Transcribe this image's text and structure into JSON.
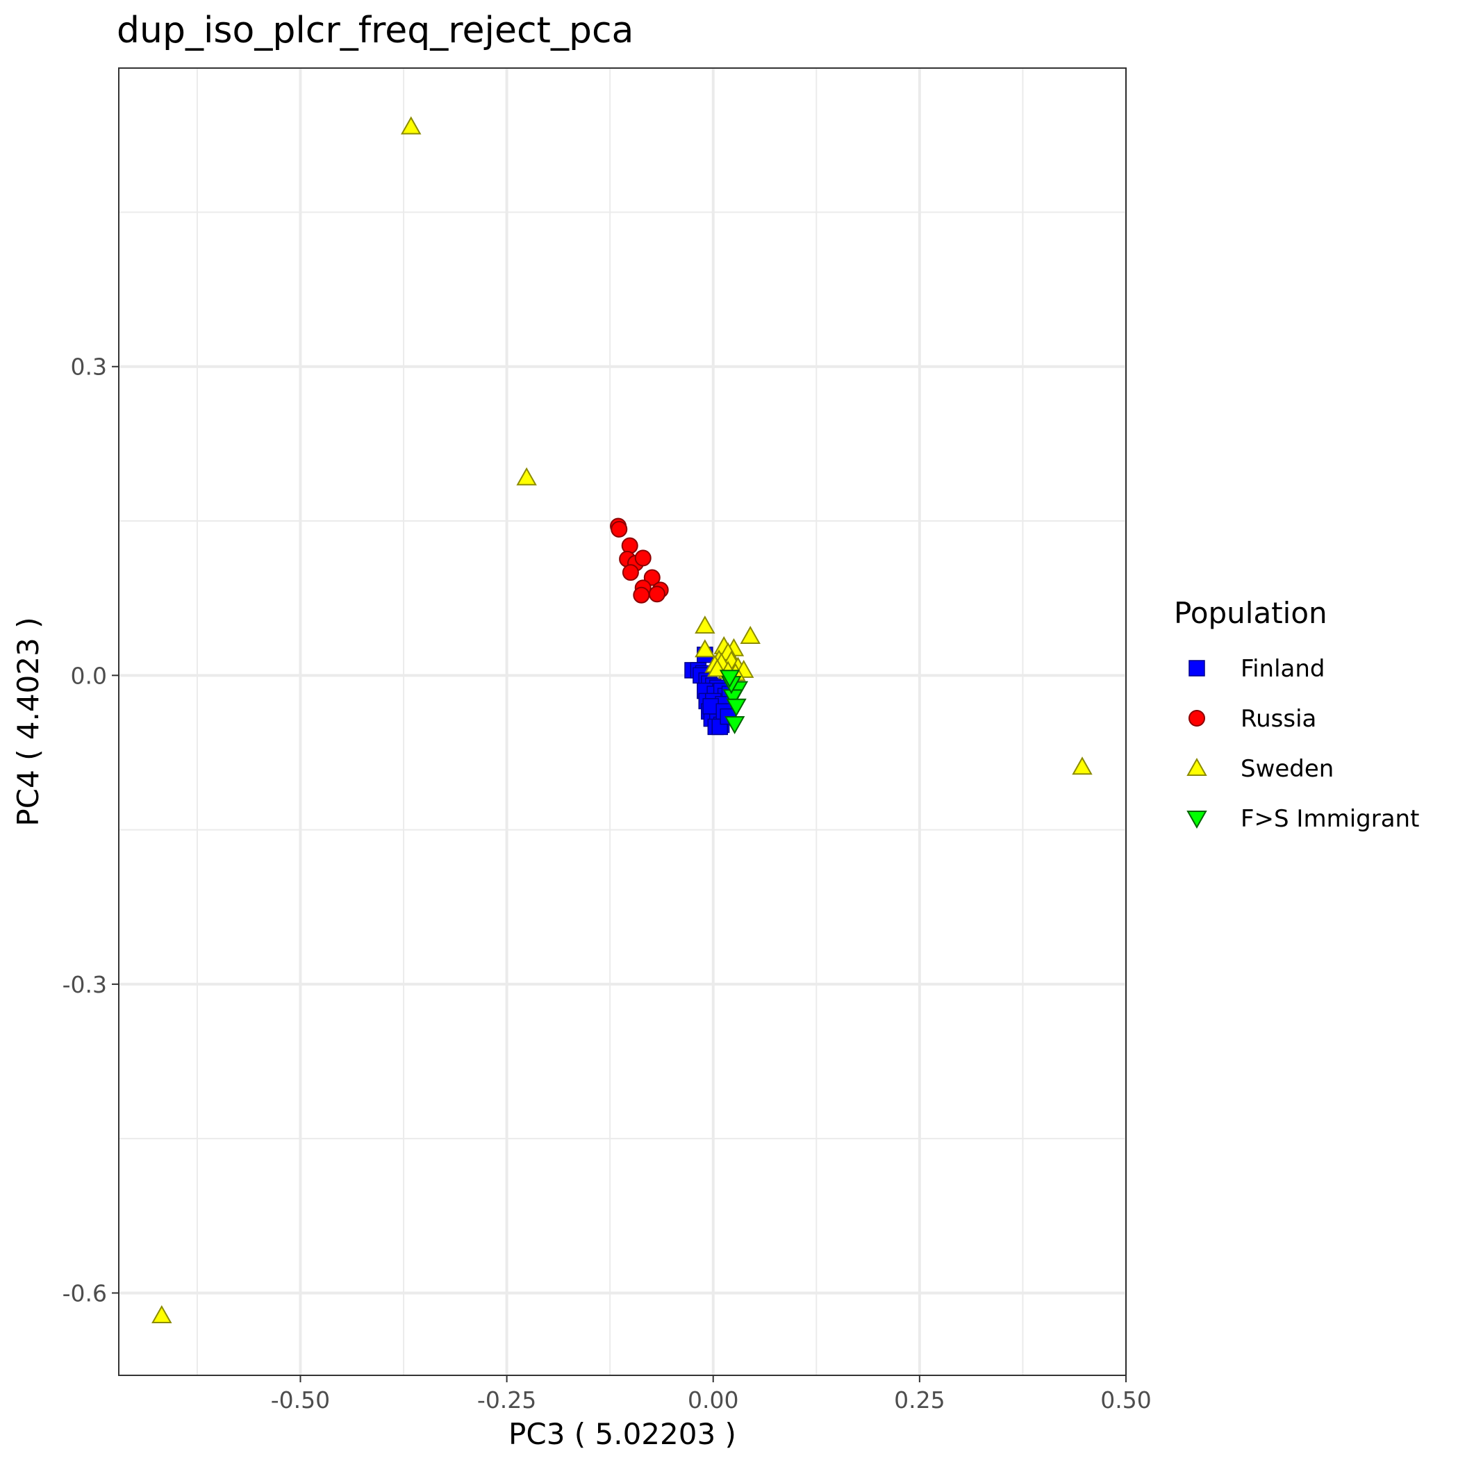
{
  "chart_data": {
    "type": "scatter",
    "title": "dup_iso_plcr_freq_reject_pca",
    "xlabel": "PC3 ( 5.02203 )",
    "ylabel": "PC4 ( 4.4023 )",
    "xlim": [
      -0.72,
      0.5
    ],
    "ylim": [
      -0.68,
      0.59
    ],
    "x_ticks": [
      -0.5,
      -0.25,
      0.0,
      0.25,
      0.5
    ],
    "x_tick_labels": [
      "-0.50",
      "-0.25",
      "0.00",
      "0.25",
      "0.50"
    ],
    "y_ticks": [
      -0.6,
      -0.3,
      0.0,
      0.3
    ],
    "y_tick_labels": [
      "-0.6",
      "-0.3",
      "0.0",
      "0.3"
    ],
    "grid": true,
    "legend": {
      "title": "Population",
      "position": "right"
    },
    "series": [
      {
        "name": "Finland",
        "marker": "square",
        "color": "#0000ff",
        "points": [
          [
            -0.01,
            0.02
          ],
          [
            -0.025,
            0.005
          ],
          [
            -0.018,
            0.005
          ],
          [
            -0.012,
            0.002
          ],
          [
            -0.015,
            0.0
          ],
          [
            -0.008,
            -0.005
          ],
          [
            -0.005,
            -0.008
          ],
          [
            0.0,
            -0.01
          ],
          [
            0.005,
            -0.012
          ],
          [
            -0.01,
            -0.015
          ],
          [
            0.002,
            -0.018
          ],
          [
            0.01,
            -0.015
          ],
          [
            0.015,
            -0.02
          ],
          [
            0.02,
            -0.018
          ],
          [
            -0.008,
            -0.025
          ],
          [
            0.0,
            -0.025
          ],
          [
            0.008,
            -0.03
          ],
          [
            0.012,
            -0.028
          ],
          [
            -0.005,
            -0.035
          ],
          [
            0.002,
            -0.038
          ],
          [
            0.01,
            -0.04
          ],
          [
            0.015,
            -0.038
          ],
          [
            -0.002,
            -0.042
          ],
          [
            0.005,
            -0.045
          ],
          [
            0.01,
            -0.048
          ],
          [
            0.003,
            -0.05
          ],
          [
            0.008,
            -0.05
          ],
          [
            -0.003,
            -0.03
          ],
          [
            0.013,
            -0.035
          ],
          [
            0.018,
            -0.04
          ]
        ]
      },
      {
        "name": "Russia",
        "marker": "circle",
        "color": "#ff0000",
        "points": [
          [
            -0.115,
            0.145
          ],
          [
            -0.114,
            0.142
          ],
          [
            -0.101,
            0.126
          ],
          [
            -0.104,
            0.113
          ],
          [
            -0.094,
            0.109
          ],
          [
            -0.085,
            0.114
          ],
          [
            -0.1,
            0.1
          ],
          [
            -0.074,
            0.095
          ],
          [
            -0.085,
            0.085
          ],
          [
            -0.087,
            0.078
          ],
          [
            -0.064,
            0.083
          ],
          [
            -0.068,
            0.079
          ]
        ]
      },
      {
        "name": "Sweden",
        "marker": "triangle-up",
        "color": "#ffff00",
        "points": [
          [
            -0.366,
            0.533
          ],
          [
            -0.226,
            0.192
          ],
          [
            -0.668,
            -0.622
          ],
          [
            0.447,
            -0.089
          ],
          [
            -0.01,
            0.048
          ],
          [
            0.045,
            0.038
          ],
          [
            0.013,
            0.028
          ],
          [
            0.025,
            0.026
          ],
          [
            0.018,
            0.022
          ],
          [
            0.007,
            0.015
          ],
          [
            0.022,
            0.014
          ],
          [
            0.03,
            0.008
          ],
          [
            0.002,
            0.01
          ],
          [
            0.01,
            0.012
          ],
          [
            0.037,
            0.005
          ],
          [
            0.018,
            0.004
          ],
          [
            0.005,
            0.006
          ],
          [
            0.027,
            0.002
          ],
          [
            -0.01,
            0.025
          ]
        ]
      },
      {
        "name": "F>S Immigrant",
        "marker": "triangle-down",
        "color": "#00ff00",
        "points": [
          [
            0.03,
            -0.013
          ],
          [
            0.024,
            -0.021
          ],
          [
            0.028,
            -0.03
          ],
          [
            0.026,
            -0.047
          ],
          [
            0.022,
            -0.008
          ],
          [
            0.02,
            -0.002
          ]
        ]
      }
    ]
  }
}
